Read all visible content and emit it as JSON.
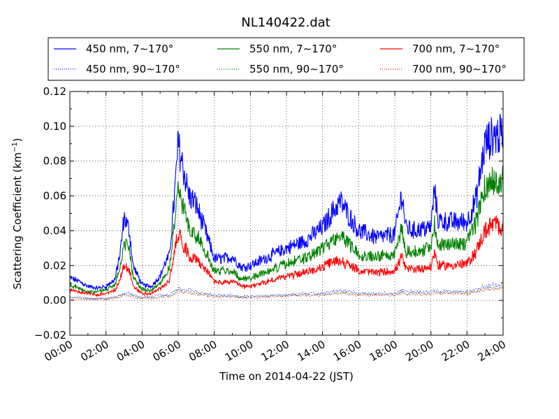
{
  "chart_data": {
    "type": "line",
    "title": "NL140422.dat",
    "xlabel": "Time on 2014-04-22 (JST)",
    "ylabel": "Scattering Coefficient (km",
    "ylabel_sup": "−1",
    "ylabel_close": ")",
    "xlim": [
      "00:00",
      "24:00"
    ],
    "ylim": [
      -0.02,
      0.12
    ],
    "grid": true,
    "legend_position": "top",
    "x_ticks": [
      "00:00",
      "02:00",
      "04:00",
      "06:00",
      "08:00",
      "10:00",
      "12:00",
      "14:00",
      "16:00",
      "18:00",
      "20:00",
      "22:00",
      "24:00"
    ],
    "y_ticks": [
      "−0.02",
      "0.00",
      "0.02",
      "0.04",
      "0.06",
      "0.08",
      "0.10",
      "0.12"
    ],
    "x_hours": [
      0,
      0.5,
      1,
      1.5,
      2,
      2.5,
      2.8,
      3,
      3.3,
      3.5,
      4,
      4.5,
      5,
      5.3,
      5.5,
      5.8,
      6,
      6.3,
      6.6,
      7,
      7.5,
      8,
      8.5,
      9,
      9.5,
      10,
      11,
      12,
      13,
      14,
      14.5,
      15,
      15.5,
      16,
      17,
      18,
      18.4,
      18.6,
      19,
      20,
      20.2,
      20.4,
      21,
      22,
      22.5,
      23,
      23.5,
      24
    ],
    "series": [
      {
        "name": "450 nm, 7∼170°",
        "color": "#0000ff",
        "dash": "solid",
        "values": [
          0.013,
          0.011,
          0.008,
          0.007,
          0.008,
          0.012,
          0.028,
          0.048,
          0.04,
          0.02,
          0.009,
          0.008,
          0.014,
          0.022,
          0.025,
          0.06,
          0.09,
          0.075,
          0.06,
          0.055,
          0.04,
          0.024,
          0.024,
          0.025,
          0.019,
          0.02,
          0.025,
          0.03,
          0.034,
          0.042,
          0.05,
          0.057,
          0.048,
          0.04,
          0.036,
          0.038,
          0.062,
          0.042,
          0.04,
          0.042,
          0.064,
          0.046,
          0.045,
          0.045,
          0.058,
          0.09,
          0.095,
          0.095
        ]
      },
      {
        "name": "550 nm, 7∼170°",
        "color": "#008000",
        "dash": "solid",
        "values": [
          0.009,
          0.007,
          0.005,
          0.005,
          0.006,
          0.009,
          0.02,
          0.034,
          0.028,
          0.014,
          0.006,
          0.006,
          0.01,
          0.015,
          0.018,
          0.045,
          0.065,
          0.052,
          0.042,
          0.038,
          0.028,
          0.017,
          0.017,
          0.017,
          0.012,
          0.013,
          0.017,
          0.021,
          0.024,
          0.03,
          0.034,
          0.038,
          0.032,
          0.027,
          0.025,
          0.027,
          0.042,
          0.028,
          0.028,
          0.03,
          0.045,
          0.032,
          0.032,
          0.033,
          0.045,
          0.065,
          0.07,
          0.068
        ]
      },
      {
        "name": "700 nm, 7∼170°",
        "color": "#ff0000",
        "dash": "solid",
        "values": [
          0.006,
          0.005,
          0.004,
          0.003,
          0.004,
          0.006,
          0.013,
          0.02,
          0.017,
          0.008,
          0.004,
          0.004,
          0.007,
          0.009,
          0.011,
          0.028,
          0.04,
          0.032,
          0.026,
          0.024,
          0.018,
          0.011,
          0.01,
          0.011,
          0.008,
          0.008,
          0.011,
          0.014,
          0.016,
          0.019,
          0.022,
          0.023,
          0.02,
          0.017,
          0.016,
          0.017,
          0.025,
          0.018,
          0.018,
          0.019,
          0.028,
          0.02,
          0.02,
          0.021,
          0.028,
          0.04,
          0.044,
          0.042
        ]
      },
      {
        "name": "450 nm, 90∼170°",
        "color": "#0000ff",
        "dash": "dotted",
        "values": [
          0.002,
          0.002,
          0.001,
          0.001,
          0.001,
          0.002,
          0.003,
          0.004,
          0.004,
          0.003,
          0.002,
          0.002,
          0.003,
          0.003,
          0.003,
          0.005,
          0.007,
          0.006,
          0.006,
          0.005,
          0.004,
          0.003,
          0.003,
          0.003,
          0.002,
          0.002,
          0.003,
          0.003,
          0.004,
          0.004,
          0.005,
          0.006,
          0.005,
          0.004,
          0.004,
          0.004,
          0.006,
          0.005,
          0.005,
          0.005,
          0.006,
          0.005,
          0.005,
          0.005,
          0.006,
          0.008,
          0.009,
          0.009
        ]
      },
      {
        "name": "550 nm, 90∼170°",
        "color": "#008000",
        "dash": "dotted",
        "values": [
          0.0015,
          0.0015,
          0.001,
          0.001,
          0.001,
          0.0015,
          0.0025,
          0.0035,
          0.003,
          0.0025,
          0.0015,
          0.0015,
          0.002,
          0.0025,
          0.0025,
          0.004,
          0.006,
          0.005,
          0.005,
          0.004,
          0.0035,
          0.0025,
          0.0025,
          0.0025,
          0.002,
          0.002,
          0.0025,
          0.003,
          0.0035,
          0.0035,
          0.004,
          0.005,
          0.004,
          0.0035,
          0.0035,
          0.0035,
          0.005,
          0.004,
          0.004,
          0.004,
          0.005,
          0.0045,
          0.0045,
          0.0045,
          0.005,
          0.007,
          0.0075,
          0.0075
        ]
      },
      {
        "name": "700 nm, 90∼170°",
        "color": "#ff0000",
        "dash": "dotted",
        "values": [
          0.001,
          0.001,
          0.0008,
          0.0008,
          0.0008,
          0.001,
          0.002,
          0.003,
          0.0025,
          0.002,
          0.001,
          0.001,
          0.0015,
          0.002,
          0.002,
          0.0035,
          0.005,
          0.0045,
          0.004,
          0.0035,
          0.003,
          0.002,
          0.002,
          0.002,
          0.0015,
          0.0015,
          0.002,
          0.0025,
          0.003,
          0.003,
          0.0035,
          0.004,
          0.0035,
          0.003,
          0.003,
          0.003,
          0.004,
          0.0035,
          0.0035,
          0.0035,
          0.0045,
          0.004,
          0.004,
          0.004,
          0.0045,
          0.006,
          0.0065,
          0.0065
        ]
      }
    ]
  }
}
